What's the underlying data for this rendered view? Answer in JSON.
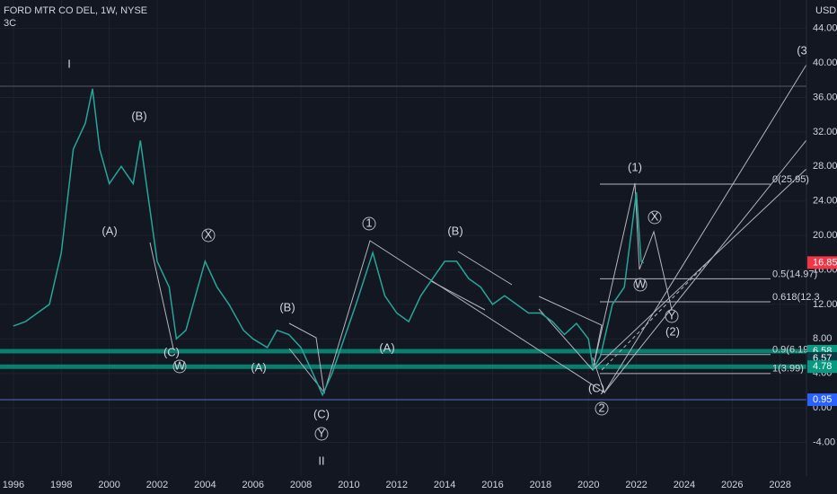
{
  "chart_data": {
    "type": "line",
    "title": "FORD MTR CO DEL, 1W, NYSE",
    "subtitle": "3C",
    "y_axis_label": "USD",
    "color": "#26a69a",
    "x": [
      1996,
      1996.5,
      1997,
      1997.5,
      1998,
      1998.5,
      1999,
      1999.3,
      1999.6,
      2000,
      2000.5,
      2001,
      2001.3,
      2001.6,
      2002,
      2002.5,
      2002.8,
      2003.2,
      2004,
      2004.5,
      2005,
      2005.6,
      2006,
      2006.6,
      2007,
      2007.5,
      2008,
      2008.5,
      2008.9,
      2009.3,
      2009.8,
      2010.3,
      2011,
      2011.5,
      2012,
      2012.5,
      2013,
      2013.5,
      2014,
      2014.5,
      2015,
      2015.5,
      2016,
      2016.5,
      2017,
      2017.5,
      2018,
      2018.5,
      2019,
      2019.5,
      2020,
      2020.2,
      2020.5,
      2021,
      2021.5,
      2022,
      2022.2,
      2022.3
    ],
    "values": [
      9.5,
      10,
      11,
      12,
      18,
      30,
      33,
      37,
      30,
      26,
      28,
      26,
      31,
      25,
      17,
      14,
      8,
      9,
      17,
      14,
      12,
      9,
      8,
      7,
      9,
      8.5,
      7,
      4,
      1.5,
      4,
      8,
      12,
      18,
      13,
      11,
      10,
      13,
      15,
      17,
      17,
      15,
      14,
      12,
      13,
      12,
      11,
      11,
      10,
      8.5,
      9.8,
      8,
      4.5,
      6,
      12,
      14,
      25,
      17,
      16.8
    ],
    "xlim": [
      1995.44,
      2029.1
    ],
    "xticks": [
      1996,
      1998,
      2000,
      2002,
      2004,
      2006,
      2008,
      2010,
      2012,
      2014,
      2016,
      2018,
      2020,
      2022,
      2024,
      2026,
      2028
    ],
    "ylim": [
      -7.9,
      47.3
    ],
    "yticks": [
      {
        "value": -4,
        "label": "-4.00"
      },
      {
        "value": 0,
        "label": "0.00"
      },
      {
        "value": 4,
        "label": "4.00"
      },
      {
        "value": 8,
        "label": "8.00"
      },
      {
        "value": 12,
        "label": "12.00"
      },
      {
        "value": 16,
        "label": "16.00"
      },
      {
        "value": 20,
        "label": "20.00"
      },
      {
        "value": 24,
        "label": "24.00"
      },
      {
        "value": 28,
        "label": "28.00"
      },
      {
        "value": 32,
        "label": "32.00"
      },
      {
        "value": 36,
        "label": "36.00"
      },
      {
        "value": 40,
        "label": "40.00"
      },
      {
        "value": 44,
        "label": "44.00"
      }
    ],
    "price_badges": [
      {
        "value": 16.85,
        "label": "16.85",
        "color": "#f23645"
      },
      {
        "value": 6.58,
        "label": "6.58",
        "color": "#089981"
      },
      {
        "value": 6.57,
        "label": "6.57",
        "color": "#0b3b45"
      },
      {
        "value": 4.78,
        "label": "4.78",
        "color": "#089981"
      },
      {
        "value": 0.95,
        "label": "0.95",
        "color": "#2962ff"
      }
    ],
    "zones": [
      {
        "value": 6.58,
        "color": "#089981"
      },
      {
        "value": 4.78,
        "color": "#089981"
      },
      {
        "value": 0.95,
        "color": "#5b7bd6"
      },
      {
        "value": 37.3,
        "color": "#5d606b"
      }
    ],
    "fib_levels": [
      {
        "value": 25.95,
        "label": "0(25.95)"
      },
      {
        "value": 14.97,
        "label": "0.5(14.97)"
      },
      {
        "value": 12.3,
        "label": "0.618(12.3"
      },
      {
        "value": 6.19,
        "label": "0.9(6.19)"
      },
      {
        "value": 3.99,
        "label": "1(3.99)"
      }
    ],
    "annotations": [
      "I",
      "(B)",
      "(A)",
      "X",
      "(C)",
      "W",
      "(A)",
      "(B)",
      "(C)",
      "Y",
      "II",
      "1",
      "(A)",
      "(B)",
      "(C)",
      "2",
      "(1)",
      "X",
      "W",
      "Y",
      "(2)",
      "(3"
    ]
  }
}
